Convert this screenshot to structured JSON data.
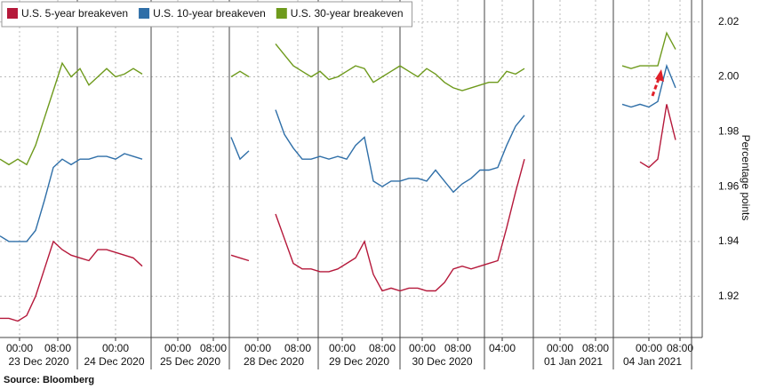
{
  "chart_data": {
    "type": "line",
    "y_label": "Percentage points",
    "source": "Source: Bloomberg",
    "legend": "top-left",
    "grid": true,
    "x": [
      0,
      10,
      20,
      30,
      40,
      50,
      60,
      70,
      80,
      90,
      100,
      110,
      120,
      130,
      140,
      150,
      160,
      170,
      180,
      190,
      200,
      210,
      220,
      230,
      240,
      250,
      260,
      270,
      280,
      290,
      300,
      310,
      320,
      330,
      340,
      350,
      360,
      370,
      380,
      390,
      400,
      410,
      420,
      430,
      440,
      450,
      460,
      470,
      480,
      490,
      500,
      510,
      520,
      530,
      540,
      550,
      560,
      570,
      580,
      590,
      600,
      610,
      620,
      630,
      640,
      650,
      660,
      670,
      680,
      690,
      700,
      710,
      720,
      730,
      740,
      750,
      760
    ],
    "xlim": [
      0,
      790
    ],
    "xticks": [
      {
        "value": 22,
        "label": "00:00"
      },
      {
        "value": 65,
        "label": "08:00"
      },
      {
        "value": 130,
        "label": "00:00"
      },
      {
        "value": 200,
        "label": "00:00"
      },
      {
        "value": 240,
        "label": "08:00"
      },
      {
        "value": 290,
        "label": "00:00"
      },
      {
        "value": 335,
        "label": "08:00"
      },
      {
        "value": 385,
        "label": "00:00"
      },
      {
        "value": 430,
        "label": "08:00"
      },
      {
        "value": 475,
        "label": "00:00"
      },
      {
        "value": 515,
        "label": "08:00"
      },
      {
        "value": 565,
        "label": "04:00"
      },
      {
        "value": 630,
        "label": "00:00"
      },
      {
        "value": 670,
        "label": "08:00"
      },
      {
        "value": 730,
        "label": "00:00"
      },
      {
        "value": 765,
        "label": "08:00"
      }
    ],
    "x_groups": [
      {
        "label": "23 Dec 2020",
        "start": 0,
        "end": 87
      },
      {
        "label": "24 Dec 2020",
        "start": 87,
        "end": 170
      },
      {
        "label": "25 Dec 2020",
        "start": 170,
        "end": 258
      },
      {
        "label": "28 Dec 2020",
        "start": 258,
        "end": 358
      },
      {
        "label": "29 Dec 2020",
        "start": 358,
        "end": 450
      },
      {
        "label": "30 Dec 2020",
        "start": 450,
        "end": 545
      },
      {
        "label": null,
        "start": 545,
        "end": 600
      },
      {
        "label": "01 Jan 2021",
        "start": 600,
        "end": 690
      },
      {
        "label": "04 Jan 2021",
        "start": 690,
        "end": 778
      }
    ],
    "ylim": [
      1.905,
      2.028
    ],
    "yticks": [
      1.92,
      1.94,
      1.96,
      1.98,
      {
        "value": 2,
        "label": "2.00"
      },
      2.02
    ],
    "series": [
      {
        "name": "U.S. 5-year breakeven",
        "color": "#b5183a",
        "values": [
          1.912,
          1.912,
          1.911,
          1.913,
          1.92,
          1.93,
          1.94,
          1.937,
          1.935,
          1.934,
          1.933,
          1.937,
          1.937,
          1.936,
          1.935,
          1.934,
          1.931,
          null,
          null,
          null,
          null,
          null,
          null,
          null,
          null,
          null,
          1.935,
          1.934,
          1.933,
          null,
          null,
          1.95,
          1.941,
          1.932,
          1.93,
          1.93,
          1.929,
          1.929,
          1.93,
          1.932,
          1.934,
          1.94,
          1.928,
          1.922,
          1.923,
          1.922,
          1.923,
          1.923,
          1.922,
          1.922,
          1.925,
          1.93,
          1.931,
          1.93,
          1.931,
          1.932,
          1.933,
          1.945,
          1.958,
          1.97,
          null,
          null,
          null,
          null,
          null,
          null,
          null,
          null,
          null,
          null,
          null,
          null,
          1.969,
          1.967,
          1.97,
          1.99,
          1.977
        ]
      },
      {
        "name": "U.S. 10-year breakeven",
        "color": "#2f6fa8",
        "values": [
          1.942,
          1.94,
          1.94,
          1.94,
          1.944,
          1.955,
          1.967,
          1.97,
          1.968,
          1.97,
          1.97,
          1.971,
          1.971,
          1.97,
          1.972,
          1.971,
          1.97,
          null,
          null,
          null,
          null,
          null,
          null,
          null,
          null,
          null,
          1.978,
          1.97,
          1.973,
          null,
          null,
          1.988,
          1.979,
          1.974,
          1.97,
          1.97,
          1.971,
          1.97,
          1.971,
          1.97,
          1.975,
          1.978,
          1.962,
          1.96,
          1.962,
          1.962,
          1.963,
          1.963,
          1.962,
          1.966,
          1.962,
          1.958,
          1.961,
          1.963,
          1.966,
          1.966,
          1.967,
          1.975,
          1.982,
          1.986,
          null,
          null,
          null,
          null,
          null,
          null,
          null,
          null,
          null,
          null,
          1.99,
          1.989,
          1.99,
          1.989,
          1.991,
          2.004,
          1.996
        ]
      },
      {
        "name": "U.S. 30-year breakeven",
        "color": "#6e9a1c",
        "values": [
          1.97,
          1.968,
          1.97,
          1.968,
          1.975,
          1.985,
          1.995,
          2.005,
          2.0,
          2.003,
          1.997,
          2.0,
          2.003,
          2.0,
          2.001,
          2.003,
          2.001,
          null,
          null,
          null,
          null,
          null,
          null,
          null,
          null,
          null,
          2.0,
          2.002,
          2.0,
          null,
          null,
          2.012,
          2.008,
          2.004,
          2.002,
          2.0,
          2.002,
          1.999,
          2.0,
          2.002,
          2.004,
          2.003,
          1.998,
          2.0,
          2.002,
          2.004,
          2.002,
          2.0,
          2.003,
          2.001,
          1.998,
          1.996,
          1.995,
          1.996,
          1.997,
          1.998,
          1.998,
          2.002,
          2.001,
          2.003,
          null,
          null,
          null,
          null,
          null,
          null,
          null,
          null,
          null,
          null,
          2.004,
          2.003,
          2.004,
          2.004,
          2.004,
          2.016,
          2.01
        ]
      }
    ]
  }
}
